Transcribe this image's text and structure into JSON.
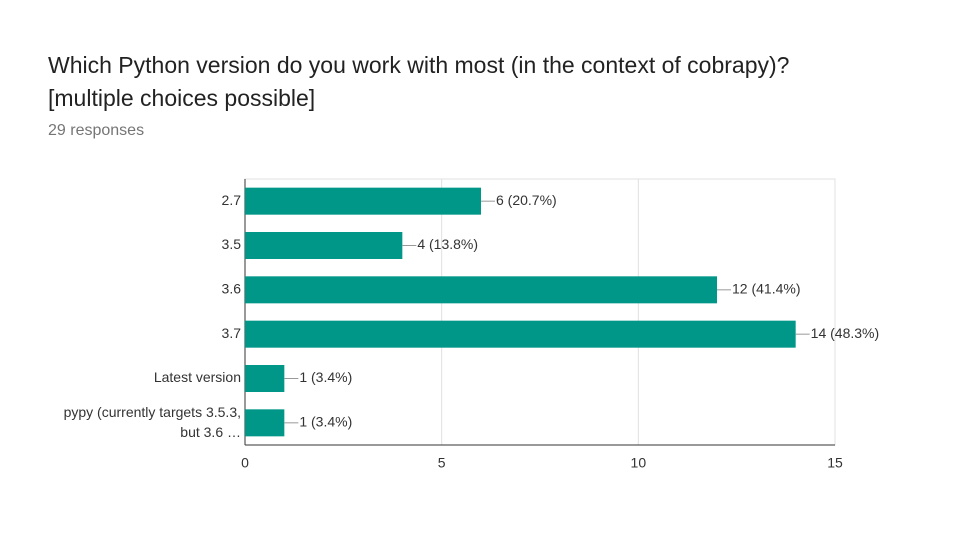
{
  "chart_data": {
    "type": "bar",
    "orientation": "horizontal",
    "title": "Which Python version do you work with most (in the context of cobrapy)?\n[multiple choices possible]",
    "subtitle": "29 responses",
    "categories": [
      "2.7",
      "3.5",
      "3.6",
      "3.7",
      "Latest version",
      "pypy (currently targets 3.5.3,\nbut 3.6 …"
    ],
    "values": [
      6,
      4,
      12,
      14,
      1,
      1
    ],
    "value_labels": [
      "6 (20.7%)",
      "4 (13.8%)",
      "12 (41.4%)",
      "14 (48.3%)",
      "1 (3.4%)",
      "1 (3.4%)"
    ],
    "color": "#009688",
    "xlim": [
      0,
      15
    ],
    "xticks": [
      0,
      5,
      10,
      15
    ],
    "grid": true
  }
}
